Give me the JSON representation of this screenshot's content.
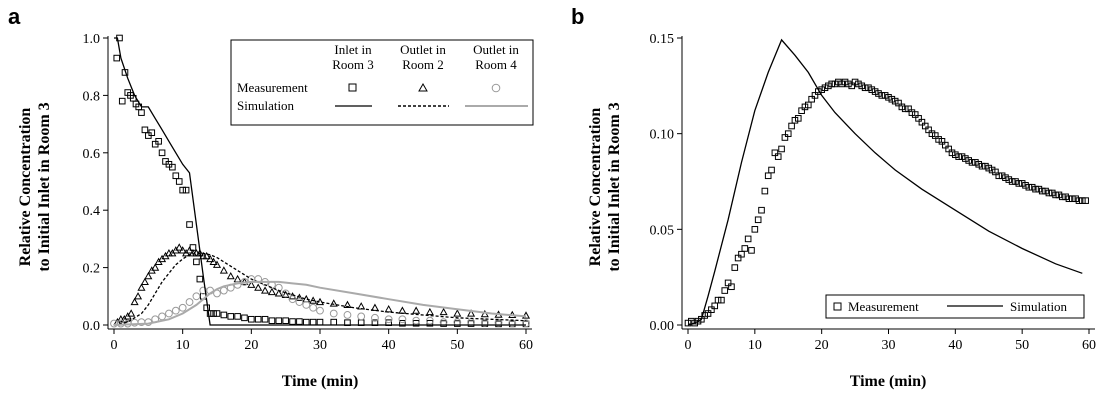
{
  "panels": {
    "a": {
      "label": "a"
    },
    "b": {
      "label": "b"
    }
  },
  "chart_data": [
    {
      "panel": "a",
      "type": "scatter",
      "xlabel": "Time (min)",
      "ylabel_line1": "Relative Concentration",
      "ylabel_line2": "to Initial Inlet in Room 3",
      "xlim": [
        0,
        60
      ],
      "ylim": [
        0,
        1.0
      ],
      "xticks": [
        0,
        10,
        20,
        30,
        40,
        50,
        60
      ],
      "yticks": [
        0.0,
        0.2,
        0.4,
        0.6,
        0.8,
        1.0
      ],
      "yticklabels": [
        "0.0",
        "0.2",
        "0.4",
        "0.6",
        "0.8",
        "1.0"
      ],
      "legend": {
        "columns": [
          {
            "line1": "Inlet in",
            "line2": "Room 3"
          },
          {
            "line1": "Outlet in",
            "line2": "Room 2"
          },
          {
            "line1": "Outlet in",
            "line2": "Room 4"
          }
        ],
        "row_measurement": "Measurement",
        "row_simulation": "Simulation",
        "position": "top-right"
      },
      "series": [
        {
          "kind": "measurement",
          "marker": "square",
          "color": "#000000",
          "x": [
            0.4,
            0.8,
            1.2,
            1.6,
            2.0,
            2.4,
            2.8,
            3.2,
            3.6,
            4.0,
            4.5,
            5.0,
            5.5,
            6.0,
            6.5,
            7.0,
            7.5,
            8.0,
            8.5,
            9.0,
            9.5,
            10.0,
            10.5,
            11.0,
            11.5,
            12.0,
            12.5,
            13.0,
            13.5,
            14.0,
            14.5,
            15.0,
            16,
            17,
            18,
            19,
            20,
            21,
            22,
            23,
            24,
            25,
            26,
            27,
            28,
            29,
            30,
            32,
            34,
            36,
            38,
            40,
            42,
            44,
            46,
            48,
            50,
            52,
            54,
            56,
            58,
            60
          ],
          "y": [
            0.93,
            1.0,
            0.78,
            0.88,
            0.81,
            0.8,
            0.79,
            0.77,
            0.76,
            0.74,
            0.68,
            0.66,
            0.67,
            0.63,
            0.64,
            0.6,
            0.57,
            0.56,
            0.55,
            0.52,
            0.5,
            0.47,
            0.47,
            0.35,
            0.27,
            0.22,
            0.16,
            0.1,
            0.06,
            0.04,
            0.04,
            0.04,
            0.035,
            0.03,
            0.03,
            0.025,
            0.02,
            0.02,
            0.02,
            0.015,
            0.015,
            0.015,
            0.012,
            0.012,
            0.01,
            0.01,
            0.01,
            0.01,
            0.008,
            0.008,
            0.008,
            0.008,
            0.006,
            0.006,
            0.006,
            0.005,
            0.005,
            0.005,
            0.005,
            0.004,
            0.004,
            0.004
          ]
        },
        {
          "kind": "measurement",
          "marker": "triangle",
          "color": "#000000",
          "x": [
            0.5,
            1,
            1.5,
            2,
            2.5,
            3,
            3.5,
            4,
            4.5,
            5,
            5.5,
            6,
            6.5,
            7,
            7.5,
            8,
            8.5,
            9,
            9.5,
            10,
            10.5,
            11,
            11.5,
            12,
            12.5,
            13,
            13.5,
            14,
            14.5,
            15,
            16,
            17,
            18,
            19,
            20,
            21,
            22,
            23,
            24,
            25,
            26,
            27,
            28,
            29,
            30,
            32,
            34,
            36,
            38,
            40,
            42,
            44,
            46,
            48,
            50,
            52,
            54,
            56,
            58,
            60
          ],
          "y": [
            0.01,
            0.02,
            0.02,
            0.03,
            0.04,
            0.08,
            0.1,
            0.13,
            0.15,
            0.17,
            0.19,
            0.2,
            0.22,
            0.23,
            0.24,
            0.25,
            0.25,
            0.26,
            0.27,
            0.26,
            0.25,
            0.26,
            0.25,
            0.25,
            0.25,
            0.24,
            0.24,
            0.23,
            0.22,
            0.21,
            0.19,
            0.17,
            0.16,
            0.15,
            0.14,
            0.13,
            0.12,
            0.115,
            0.11,
            0.105,
            0.1,
            0.095,
            0.09,
            0.085,
            0.08,
            0.075,
            0.07,
            0.065,
            0.06,
            0.055,
            0.05,
            0.05,
            0.045,
            0.045,
            0.04,
            0.04,
            0.038,
            0.036,
            0.035,
            0.033
          ]
        },
        {
          "kind": "measurement",
          "marker": "circle",
          "color": "#999999",
          "x": [
            0,
            1,
            2,
            3,
            4,
            5,
            6,
            7,
            8,
            9,
            10,
            11,
            12,
            13,
            14,
            15,
            16,
            17,
            18,
            19,
            20,
            21,
            22,
            23,
            24,
            25,
            26,
            27,
            28,
            29,
            30,
            32,
            34,
            36,
            38,
            40,
            42,
            44,
            46,
            48,
            50,
            52,
            54,
            56,
            58,
            60
          ],
          "y": [
            0.005,
            0.005,
            0.005,
            0.008,
            0.01,
            0.01,
            0.02,
            0.03,
            0.04,
            0.05,
            0.06,
            0.08,
            0.1,
            0.12,
            0.12,
            0.11,
            0.12,
            0.13,
            0.14,
            0.15,
            0.16,
            0.16,
            0.15,
            0.14,
            0.13,
            0.11,
            0.09,
            0.08,
            0.07,
            0.06,
            0.05,
            0.04,
            0.035,
            0.03,
            0.025,
            0.02,
            0.02,
            0.015,
            0.015,
            0.01,
            0.01,
            0.01,
            0.008,
            0.008,
            0.006,
            0.006
          ]
        },
        {
          "kind": "simulation",
          "line_style": "solid",
          "color": "#000000",
          "x": [
            0,
            0.5,
            1,
            2,
            3,
            4,
            5,
            6,
            7,
            8,
            9,
            10,
            11,
            12,
            13,
            14,
            15,
            20,
            30,
            40,
            50,
            60
          ],
          "y": [
            1.0,
            1.0,
            0.93,
            0.86,
            0.8,
            0.76,
            0.76,
            0.72,
            0.68,
            0.64,
            0.6,
            0.56,
            0.53,
            0.35,
            0.17,
            0.0,
            0.0,
            0.0,
            0.0,
            0.0,
            0.0,
            0.0
          ]
        },
        {
          "kind": "simulation",
          "line_style": "dashed",
          "color": "#000000",
          "x": [
            0,
            2,
            4,
            5,
            6,
            7,
            8,
            9,
            10,
            11,
            12,
            13,
            14,
            15,
            16,
            17,
            18,
            19,
            20,
            22,
            24,
            26,
            28,
            30,
            35,
            40,
            45,
            50,
            55,
            60
          ],
          "y": [
            0,
            0.01,
            0.04,
            0.07,
            0.11,
            0.15,
            0.18,
            0.21,
            0.23,
            0.245,
            0.25,
            0.25,
            0.245,
            0.235,
            0.22,
            0.205,
            0.19,
            0.175,
            0.16,
            0.14,
            0.12,
            0.105,
            0.09,
            0.08,
            0.06,
            0.045,
            0.035,
            0.025,
            0.02,
            0.015
          ]
        },
        {
          "kind": "simulation",
          "line_style": "solid",
          "color": "#aaaaaa",
          "x": [
            0,
            5,
            8,
            10,
            12,
            13,
            14,
            15,
            16,
            17,
            18,
            20,
            22,
            24,
            26,
            28,
            30,
            35,
            40,
            45,
            50,
            55,
            60
          ],
          "y": [
            0,
            0.005,
            0.02,
            0.04,
            0.07,
            0.09,
            0.11,
            0.125,
            0.135,
            0.14,
            0.145,
            0.15,
            0.15,
            0.15,
            0.145,
            0.14,
            0.13,
            0.11,
            0.09,
            0.07,
            0.055,
            0.04,
            0.03
          ]
        }
      ]
    },
    {
      "panel": "b",
      "type": "scatter",
      "xlabel": "Time (min)",
      "ylabel_line1": "Relative Concentration",
      "ylabel_line2": "to Initial Inlet in Room 3",
      "xlim": [
        0,
        60
      ],
      "ylim": [
        0,
        0.15
      ],
      "xticks": [
        0,
        10,
        20,
        30,
        40,
        50,
        60
      ],
      "yticks": [
        0.0,
        0.05,
        0.1,
        0.15
      ],
      "yticklabels": [
        "0.00",
        "0.05",
        "0.10",
        "0.15"
      ],
      "legend": {
        "entries": [
          {
            "name": "Measurement",
            "marker": "square"
          },
          {
            "name": "Simulation",
            "line_style": "solid"
          }
        ],
        "position": "bottom-right"
      },
      "series": [
        {
          "name": "Measurement",
          "marker": "square",
          "color": "#000000",
          "x": [
            0,
            0.5,
            1,
            1.5,
            2,
            2.5,
            3,
            3.5,
            4,
            4.5,
            5,
            5.5,
            6,
            6.5,
            7,
            7.5,
            8,
            8.5,
            9,
            9.5,
            10,
            10.5,
            11,
            11.5,
            12,
            12.5,
            13,
            13.5,
            14,
            14.5,
            15,
            15.5,
            16,
            16.5,
            17,
            17.5,
            18,
            18.5,
            19,
            19.5,
            20,
            20.5,
            21,
            21.5,
            22,
            22.5,
            23,
            23.5,
            24,
            24.5,
            25,
            25.5,
            26,
            26.5,
            27,
            27.5,
            28,
            28.5,
            29,
            29.5,
            30,
            30.5,
            31,
            31.5,
            32,
            32.5,
            33,
            33.5,
            34,
            34.5,
            35,
            35.5,
            36,
            36.5,
            37,
            37.5,
            38,
            38.5,
            39,
            39.5,
            40,
            40.5,
            41,
            41.5,
            42,
            42.5,
            43,
            43.5,
            44,
            44.5,
            45,
            45.5,
            46,
            46.5,
            47,
            47.5,
            48,
            48.5,
            49,
            49.5,
            50,
            50.5,
            51,
            51.5,
            52,
            52.5,
            53,
            53.5,
            54,
            54.5,
            55,
            55.5,
            56,
            56.5,
            57,
            57.5,
            58,
            58.5,
            59,
            59.5
          ],
          "y": [
            0.001,
            0.002,
            0.001,
            0.002,
            0.003,
            0.005,
            0.006,
            0.008,
            0.01,
            0.013,
            0.013,
            0.018,
            0.022,
            0.02,
            0.03,
            0.035,
            0.037,
            0.04,
            0.045,
            0.039,
            0.05,
            0.055,
            0.06,
            0.07,
            0.078,
            0.081,
            0.09,
            0.088,
            0.092,
            0.098,
            0.1,
            0.104,
            0.107,
            0.108,
            0.112,
            0.114,
            0.115,
            0.118,
            0.12,
            0.122,
            0.123,
            0.124,
            0.125,
            0.126,
            0.126,
            0.127,
            0.126,
            0.127,
            0.126,
            0.125,
            0.127,
            0.126,
            0.125,
            0.124,
            0.124,
            0.123,
            0.122,
            0.121,
            0.12,
            0.12,
            0.119,
            0.118,
            0.117,
            0.116,
            0.114,
            0.113,
            0.113,
            0.111,
            0.11,
            0.108,
            0.106,
            0.104,
            0.102,
            0.1,
            0.099,
            0.097,
            0.096,
            0.094,
            0.092,
            0.09,
            0.089,
            0.088,
            0.088,
            0.087,
            0.086,
            0.085,
            0.085,
            0.084,
            0.083,
            0.083,
            0.082,
            0.081,
            0.08,
            0.078,
            0.078,
            0.077,
            0.076,
            0.075,
            0.075,
            0.074,
            0.074,
            0.073,
            0.072,
            0.072,
            0.071,
            0.071,
            0.07,
            0.07,
            0.069,
            0.069,
            0.068,
            0.068,
            0.067,
            0.067,
            0.066,
            0.066,
            0.066,
            0.065,
            0.065,
            0.065
          ]
        },
        {
          "name": "Simulation",
          "line_style": "solid",
          "color": "#000000",
          "x": [
            0,
            1,
            2,
            3,
            4,
            6,
            8,
            10,
            12,
            14,
            16,
            18,
            20,
            22,
            25,
            28,
            31,
            35,
            40,
            45,
            50,
            55,
            59
          ],
          "y": [
            0,
            0.001,
            0.003,
            0.015,
            0.028,
            0.055,
            0.085,
            0.112,
            0.132,
            0.149,
            0.141,
            0.132,
            0.12,
            0.111,
            0.1,
            0.09,
            0.081,
            0.071,
            0.06,
            0.049,
            0.04,
            0.032,
            0.027
          ]
        }
      ]
    }
  ]
}
